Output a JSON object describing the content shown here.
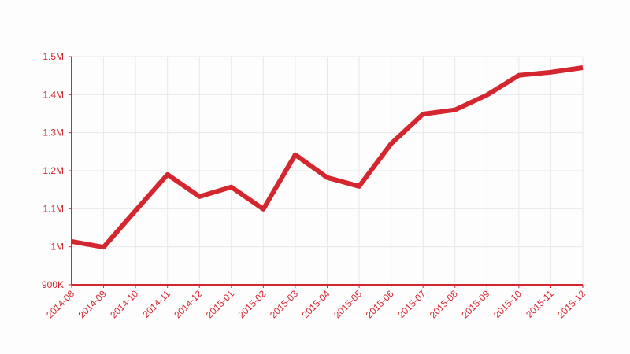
{
  "chart_data": {
    "type": "line",
    "categories": [
      "2014-08",
      "2014-09",
      "2014-10",
      "2014-11",
      "2014-12",
      "2015-01",
      "2015-02",
      "2015-03",
      "2015-04",
      "2015-05",
      "2015-06",
      "2015-07",
      "2015-08",
      "2015-09",
      "2015-10",
      "2015-11",
      "2015-12"
    ],
    "series": [
      {
        "color": "#d3262f",
        "values": [
          1014000,
          999000,
          1095000,
          1190000,
          1132000,
          1157000,
          1099000,
          1242000,
          1182000,
          1159000,
          1271000,
          1349000,
          1360000,
          1399000,
          1451000,
          1459000,
          1471000
        ]
      }
    ],
    "ylim": [
      900000,
      1500000
    ],
    "yticks": [
      {
        "value": 900000,
        "label": "900K"
      },
      {
        "value": 1000000,
        "label": "1M"
      },
      {
        "value": 1100000,
        "label": "1.1M"
      },
      {
        "value": 1200000,
        "label": "1.2M"
      },
      {
        "value": 1300000,
        "label": "1.3M"
      },
      {
        "value": 1400000,
        "label": "1.4M"
      },
      {
        "value": 1500000,
        "label": "1.5M"
      }
    ],
    "grid": true
  }
}
